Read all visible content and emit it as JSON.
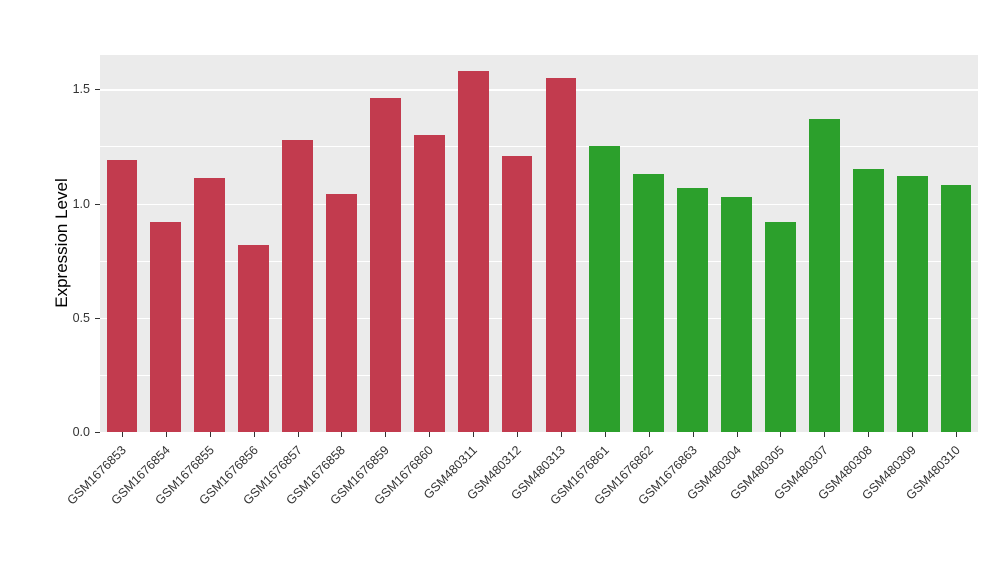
{
  "chart_data": {
    "type": "bar",
    "title": "",
    "xlabel": "",
    "ylabel": "Expression Level",
    "ylim": [
      0,
      1.65
    ],
    "yticks": [
      0,
      0.5,
      1.0,
      1.5
    ],
    "ytick_labels": [
      "0.0",
      "0.5",
      "1.0",
      "1.5"
    ],
    "minor_gridlines": [
      0.25,
      0.75,
      1.25
    ],
    "grid": true,
    "legend": "none",
    "panel_background": "#EBEBEB",
    "gridline_color": "#FFFFFF",
    "categories": [
      "GSM1676853",
      "GSM1676854",
      "GSM1676855",
      "GSM1676856",
      "GSM1676857",
      "GSM1676858",
      "GSM1676859",
      "GSM1676860",
      "GSM480311",
      "GSM480312",
      "GSM480313",
      "GSM1676861",
      "GSM1676862",
      "GSM1676863",
      "GSM480304",
      "GSM480305",
      "GSM480307",
      "GSM480308",
      "GSM480309",
      "GSM480310"
    ],
    "values": [
      1.19,
      0.92,
      1.11,
      0.82,
      1.28,
      1.04,
      1.46,
      1.3,
      1.58,
      1.21,
      1.55,
      1.25,
      1.13,
      1.07,
      1.03,
      0.92,
      1.37,
      1.15,
      1.12,
      1.08
    ],
    "colors": [
      "#C23B4E",
      "#C23B4E",
      "#C23B4E",
      "#C23B4E",
      "#C23B4E",
      "#C23B4E",
      "#C23B4E",
      "#C23B4E",
      "#C23B4E",
      "#C23B4E",
      "#C23B4E",
      "#2CA02C",
      "#2CA02C",
      "#2CA02C",
      "#2CA02C",
      "#2CA02C",
      "#2CA02C",
      "#2CA02C",
      "#2CA02C",
      "#2CA02C"
    ],
    "group_colors": {
      "left_group": "#C23B4E",
      "right_group": "#2CA02C"
    }
  }
}
